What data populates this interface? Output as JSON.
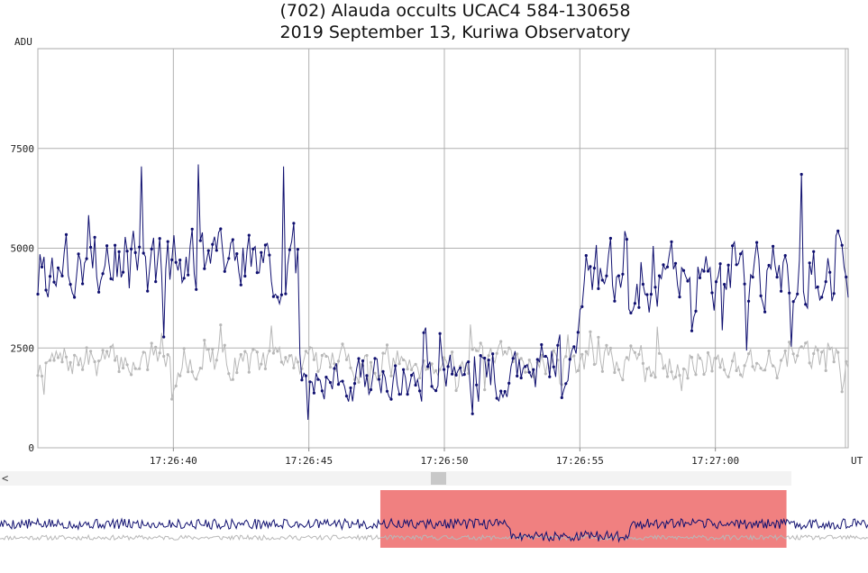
{
  "chart_data": {
    "type": "line",
    "title": "(702) Alauda occults UCAC4 584-130658",
    "subtitle": "2019 September 13, Kuriwa Observatory",
    "ylabel": "ADU",
    "xlabel": "UT",
    "ylim": [
      0,
      10000
    ],
    "yticks": [
      0,
      2500,
      5000,
      7500
    ],
    "xlim": [
      "17:26:35.0",
      "17:27:04.9"
    ],
    "xtick_labels": [
      "17:26:40",
      "17:26:45",
      "17:26:50",
      "17:26:55",
      "17:27:00"
    ],
    "grid": true,
    "colors": {
      "target": "#101070",
      "comparison": "#b8b8b8",
      "overview_highlight": "#f08080"
    },
    "series": [
      {
        "role": "target",
        "values_by_segment": [
          {
            "x_range": [
              "17:26:35.0",
              "17:26:44.6"
            ],
            "level": 4600,
            "spread": 1100
          },
          {
            "x_range": [
              "17:26:44.6",
              "17:26:53.4"
            ],
            "level": 1700,
            "spread": 700
          },
          {
            "x_range": [
              "17:26:53.4",
              "17:26:55.0"
            ],
            "level": 2400,
            "spread": 800
          },
          {
            "x_range": [
              "17:26:55.0",
              "17:27:04.9"
            ],
            "level": 4300,
            "spread": 1000
          }
        ],
        "highlights": [
          {
            "x": "17:26:38.8",
            "y": 7050
          },
          {
            "x": "17:26:40.9",
            "y": 7100
          },
          {
            "x": "17:26:44.1",
            "y": 7050
          },
          {
            "x": "17:26:45.0",
            "y": 700
          },
          {
            "x": "17:26:51.0",
            "y": 850
          },
          {
            "x": "17:27:03.2",
            "y": 6850
          }
        ]
      },
      {
        "role": "comparison",
        "values_by_segment": [
          {
            "x_range": [
              "17:26:35.0",
              "17:27:04.9"
            ],
            "level": 2150,
            "spread": 500
          }
        ]
      }
    ]
  },
  "scrollbar": {
    "left_arrow": "<"
  }
}
